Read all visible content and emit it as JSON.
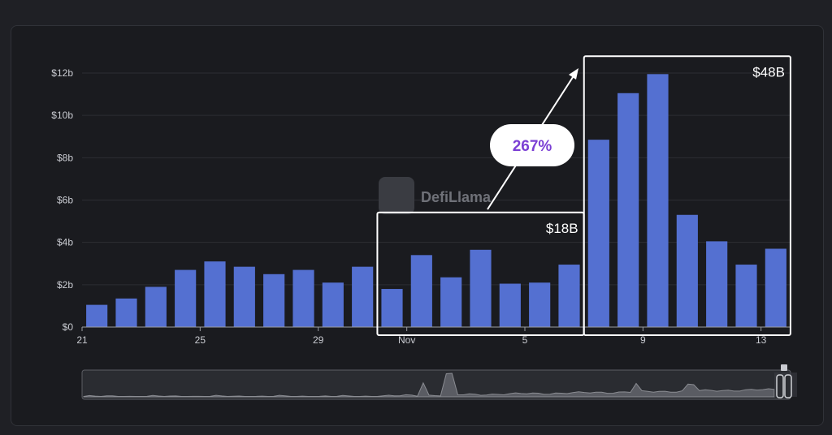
{
  "watermark": "DefiLlama",
  "chart_data": {
    "type": "bar",
    "y_ticks": [
      "$0",
      "$2b",
      "$4b",
      "$6b",
      "$8b",
      "$10b",
      "$12b"
    ],
    "ylim": [
      0,
      12
    ],
    "y_unit": "billion USD",
    "x_ticks": [
      {
        "label": "21",
        "day": 0
      },
      {
        "label": "25",
        "day": 4
      },
      {
        "label": "29",
        "day": 8
      },
      {
        "label": "Nov",
        "day": 11
      },
      {
        "label": "5",
        "day": 15
      },
      {
        "label": "9",
        "day": 19
      },
      {
        "label": "13",
        "day": 23
      }
    ],
    "values": [
      1.05,
      1.35,
      1.9,
      2.7,
      3.1,
      2.85,
      2.5,
      2.7,
      2.1,
      2.85,
      1.8,
      3.4,
      2.35,
      3.65,
      2.05,
      2.1,
      2.95,
      8.85,
      11.05,
      11.95,
      5.3,
      4.05,
      2.95,
      3.7
    ],
    "grid": true,
    "bar_color": "#5470d1",
    "annotations": {
      "box_before": {
        "label": "$18B",
        "from_index": 10,
        "to_index": 16
      },
      "box_after": {
        "label": "$48B",
        "from_index": 17,
        "to_index": 23
      },
      "growth": {
        "label": "267%"
      }
    }
  }
}
